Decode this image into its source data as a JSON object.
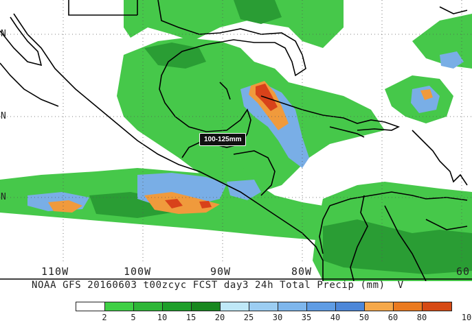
{
  "map": {
    "lon_labels": [
      {
        "text": "110W"
      },
      {
        "text": "100W"
      },
      {
        "text": "90W"
      },
      {
        "text": "80W"
      },
      {
        "text": "60"
      }
    ],
    "lat_labels": [
      {
        "text": "N"
      },
      {
        "text": "N"
      },
      {
        "text": "N"
      }
    ],
    "tooltip": "100-125mm",
    "caption": "NOAA GFS 20160603 t00zcyc FCST day3 24h Total Precip (mm)  V"
  },
  "legend": {
    "colors": [
      "#ffffff",
      "#3fcf45",
      "#2eb637",
      "#1e9e2a",
      "#18871f",
      "#bfe8f7",
      "#9ccdf2",
      "#7eb6ec",
      "#5f9ce4",
      "#4d87d8",
      "#f5a84a",
      "#ea7a1f",
      "#d64a14"
    ],
    "ticks": [
      "2",
      "5",
      "10",
      "15",
      "20",
      "25",
      "30",
      "35",
      "40",
      "50",
      "60",
      "80",
      "10"
    ]
  },
  "colors": {
    "precip_light": "#46c84a",
    "precip_mid": "#2fa83a",
    "precip_blue": "#79aee6",
    "precip_orange": "#f09a3c",
    "precip_red": "#d8421a",
    "coast": "#000000"
  }
}
